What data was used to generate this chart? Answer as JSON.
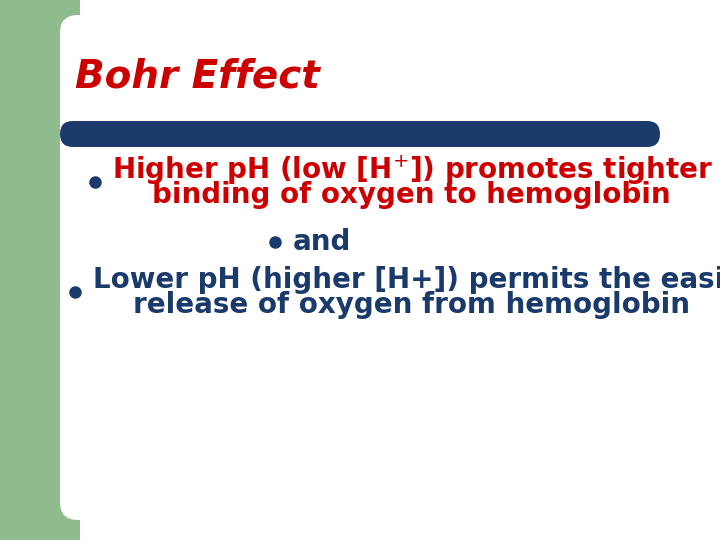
{
  "title": "Bohr Effect",
  "title_color": "#cc0000",
  "title_fontsize": 28,
  "bg_color": "#ffffff",
  "green_rect_color": "#8fbc8f",
  "bar_color": "#1a3a6b",
  "bullet1_part1": "Higher pH (low [H",
  "bullet1_sup": "+",
  "bullet1_part2": "]) promotes tighter",
  "bullet1_line2": "binding of oxygen to hemoglobin",
  "bullet1_color": "#cc0000",
  "bullet2": "and",
  "bullet2_color": "#1a3a6b",
  "bullet3_line1": "Lower pH (higher [H+]) permits the easier",
  "bullet3_line2": "release of oxygen from hemoglobin",
  "bullet3_color": "#1a3a6b",
  "bullet_color": "#1a3a6b",
  "font_size_main": 20,
  "font_size_small": 20
}
